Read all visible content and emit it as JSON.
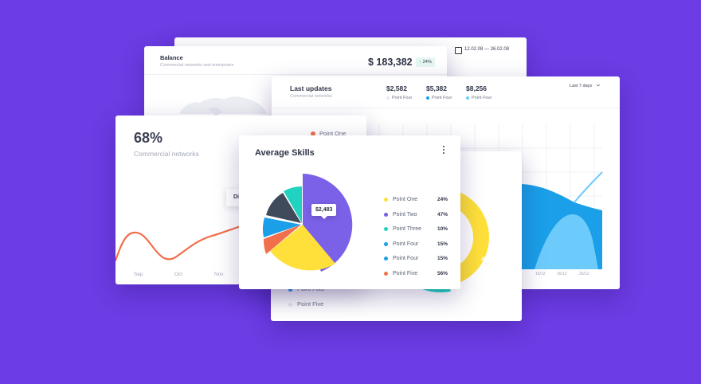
{
  "colors": {
    "background": "#6c3ce4",
    "yellow": "#ffe03a",
    "purple": "#7b61e8",
    "teal": "#22d2c0",
    "blue": "#1a9fe8",
    "light_blue": "#6dcbfb",
    "orange": "#f26f4b",
    "slate": "#3f4a5a"
  },
  "back_card": {
    "date_range": "12.02.08 — 26.02.08",
    "icon": "calendar-icon"
  },
  "balance": {
    "title": "Balance",
    "subtitle": "Commercial networks and enterprises",
    "amount": "$ 183,382",
    "badge": "24%",
    "badge_icon": "arrow-up-icon"
  },
  "updates": {
    "title": "Last updates",
    "subtitle": "Commercial networks",
    "stats": [
      {
        "value": "$2,582",
        "label": "Point Four",
        "color": "#e8eaf0"
      },
      {
        "value": "$5,382",
        "label": "Point Four",
        "color": "#1a9fe8"
      },
      {
        "value": "$8,256",
        "label": "Point Four",
        "color": "#6dcbfb"
      }
    ],
    "period": "Last 7 days",
    "x_ticks": [
      "16/12",
      "16/12",
      "26/12"
    ]
  },
  "skills_back": {
    "legend": [
      {
        "label": "Point Four",
        "color": "#1a9fe8"
      },
      {
        "label": "Point Five",
        "color": "#e8eaf0"
      }
    ],
    "donut_label": "48%"
  },
  "line_card": {
    "percent": "68%",
    "subtitle": "Commercial networks",
    "legend": "Point One",
    "tooltip": "Di",
    "months": [
      "Sep",
      "Oct",
      "Nov"
    ]
  },
  "average_skills": {
    "title": "Average Skills",
    "tooltip": "$2,483",
    "items": [
      {
        "label": "Point One",
        "percent": "24%",
        "color": "#ffe03a"
      },
      {
        "label": "Point Two",
        "percent": "47%",
        "color": "#7b61e8"
      },
      {
        "label": "Point Three",
        "percent": "10%",
        "color": "#22d2c0"
      },
      {
        "label": "Point Four",
        "percent": "15%",
        "color": "#1a9fe8"
      },
      {
        "label": "Point Four",
        "percent": "15%",
        "color": "#1a9fe8"
      },
      {
        "label": "Point Five",
        "percent": "56%",
        "color": "#f26f4b"
      }
    ]
  }
}
